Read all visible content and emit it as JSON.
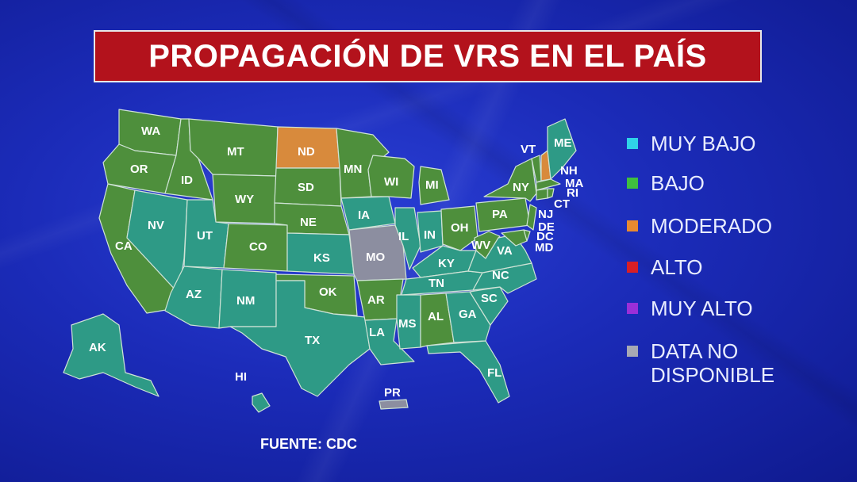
{
  "title": "PROPAGACIÓN DE VRS EN EL PAÍS",
  "source": "FUENTE: CDC",
  "colors": {
    "muy_bajo": "#2fd3e8",
    "bajo": "#3fbf3f",
    "moderado": "#e88a2f",
    "alto": "#d81f26",
    "muy_alto": "#9b2fd8",
    "no_data": "#a7a9b4",
    "map_green": "#4e8f3c",
    "map_teal": "#2e9a86",
    "map_orange": "#d88a3c",
    "map_gray": "#8c8ea0"
  },
  "legend": [
    {
      "label": "MUY BAJO",
      "color": "#2fd3e8"
    },
    {
      "label": "BAJO",
      "color": "#3fbf3f"
    },
    {
      "label": "MODERADO",
      "color": "#e88a2f"
    },
    {
      "label": "ALTO",
      "color": "#d81f26"
    },
    {
      "label": "MUY ALTO",
      "color": "#9b2fd8"
    },
    {
      "label": "DATA NO DISPONIBLE",
      "color": "#a7a9b4"
    }
  ],
  "states": {
    "WA": "BAJO",
    "OR": "BAJO",
    "ID": "BAJO",
    "MT": "BAJO",
    "WY": "BAJO",
    "CO": "BAJO",
    "SD": "BAJO",
    "NE": "BAJO",
    "MN": "BAJO",
    "WI": "BAJO",
    "MI": "BAJO",
    "OH": "BAJO",
    "PA": "BAJO",
    "NY": "BAJO",
    "WV": "BAJO",
    "OK": "BAJO",
    "AR": "BAJO",
    "AL": "BAJO",
    "CA": "BAJO",
    "VT": "BAJO",
    "MA": "BAJO",
    "CT": "BAJO",
    "RI": "BAJO",
    "NJ": "BAJO",
    "DE": "BAJO",
    "DC": "BAJO",
    "MD": "BAJO",
    "ND": "MODERADO",
    "NH": "MODERADO",
    "MO": "DATA NO DISPONIBLE",
    "PR": "DATA NO DISPONIBLE",
    "NV": "MUY BAJO",
    "UT": "MUY BAJO",
    "AZ": "MUY BAJO",
    "NM": "MUY BAJO",
    "TX": "MUY BAJO",
    "KS": "MUY BAJO",
    "IA": "MUY BAJO",
    "IL": "MUY BAJO",
    "IN": "MUY BAJO",
    "KY": "MUY BAJO",
    "TN": "MUY BAJO",
    "VA": "MUY BAJO",
    "NC": "MUY BAJO",
    "SC": "MUY BAJO",
    "GA": "MUY BAJO",
    "FL": "MUY BAJO",
    "MS": "MUY BAJO",
    "LA": "MUY BAJO",
    "ME": "MUY BAJO",
    "AK": "MUY BAJO",
    "HI": "MUY BAJO"
  }
}
